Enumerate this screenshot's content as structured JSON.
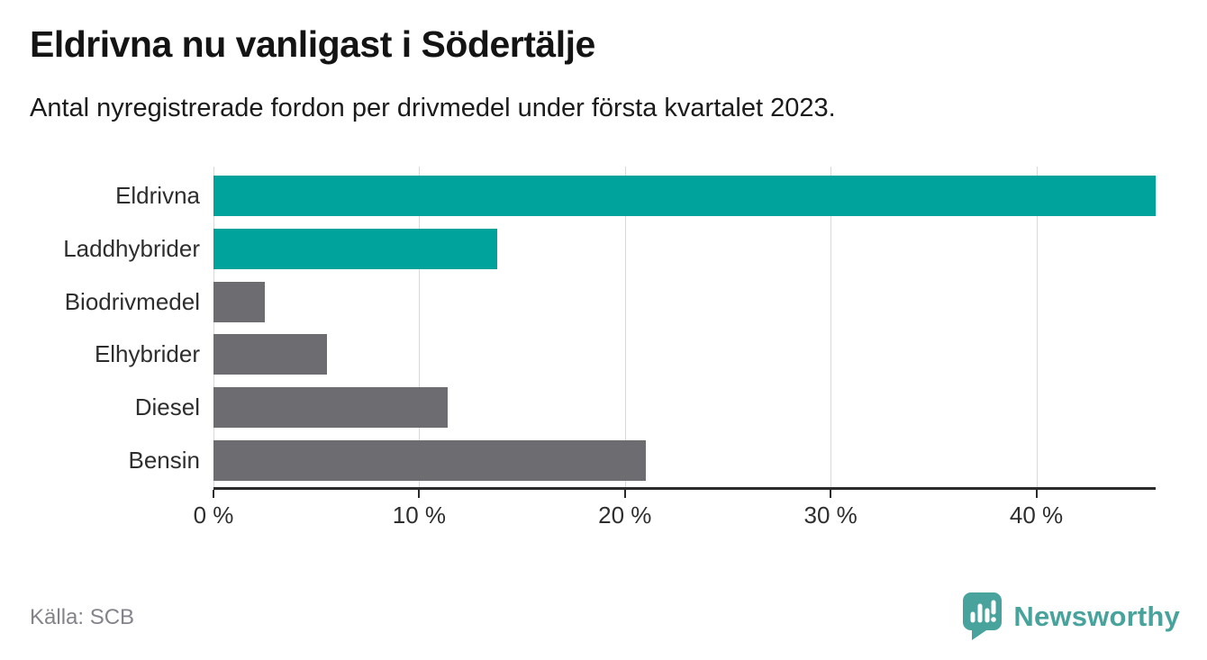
{
  "header": {
    "title": "Eldrivna nu vanligast i Södertälje",
    "subtitle": "Antal nyregistrerade fordon per drivmedel under första kvartalet 2023."
  },
  "chart_data": {
    "type": "bar",
    "orientation": "horizontal",
    "categories": [
      "Eldrivna",
      "Laddhybrider",
      "Biodrivmedel",
      "Elhybrider",
      "Diesel",
      "Bensin"
    ],
    "values": [
      45.8,
      13.8,
      2.5,
      5.5,
      11.4,
      21.0
    ],
    "unit": "%",
    "xlim": [
      0,
      45.8
    ],
    "x_ticks": [
      0,
      10,
      20,
      30,
      40
    ],
    "x_tick_labels": [
      "0 %",
      "10 %",
      "20 %",
      "30 %",
      "40 %"
    ],
    "grid": true,
    "legend": "none",
    "bar_colors": [
      "#00a39b",
      "#00a39b",
      "#6c6c71",
      "#6c6c71",
      "#6c6c71",
      "#6c6c71"
    ],
    "title": "Eldrivna nu vanligast i Södertälje",
    "xlabel": "",
    "ylabel": ""
  },
  "footer": {
    "source": "Källa: SCB",
    "brand": "Newsworthy"
  },
  "colors": {
    "highlight_teal": "#00a39b",
    "bar_gray": "#6c6c71",
    "gridline": "#d9d9d9",
    "axis": "#2b2b2b",
    "text_dark": "#2e2e2e",
    "muted_gray": "#83838b",
    "brand_teal": "#48a39c"
  },
  "icons": {
    "newsworthy_logo": "speech-bubble-bar-chart-icon"
  }
}
